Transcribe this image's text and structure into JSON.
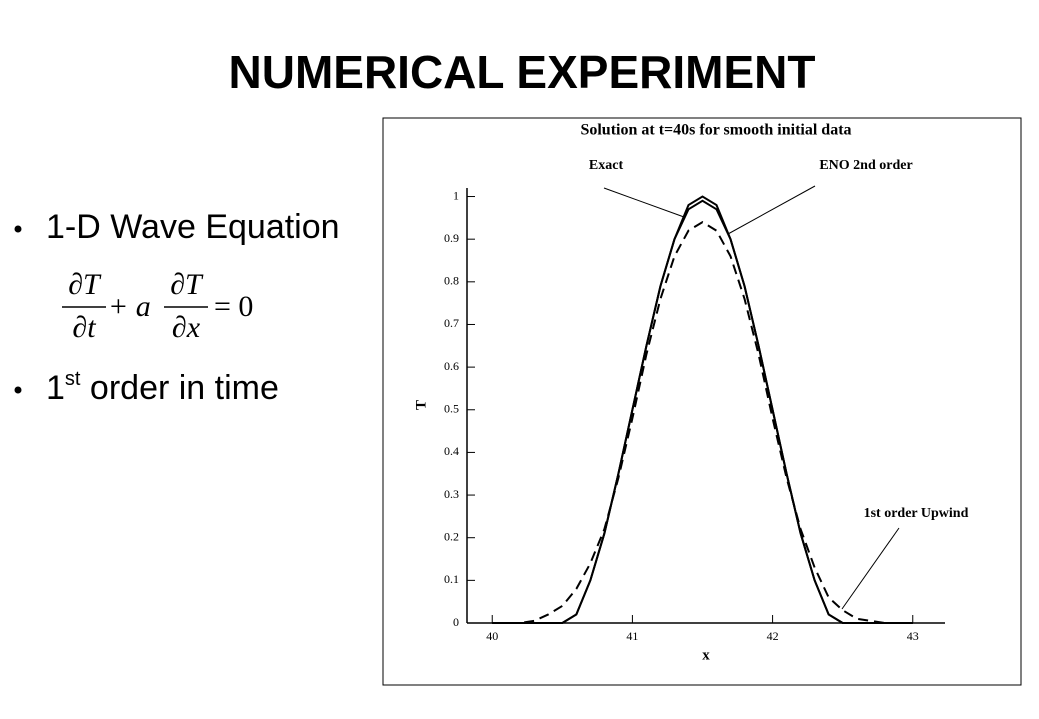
{
  "title": "NUMERICAL EXPERIMENT",
  "bullets": [
    {
      "text": "1-D Wave Equation"
    },
    {
      "number": "1",
      "superscript": "st",
      "text": " order in time"
    }
  ],
  "equation": {
    "numerator1": "∂T",
    "denominator1": "∂t",
    "operator": "+ a",
    "numerator2": "∂T",
    "denominator2": "∂x",
    "rhs": "= 0"
  },
  "chart_data": {
    "type": "line",
    "title": "Solution at t=40s for smooth initial data",
    "x_label": "x",
    "y_label": "T",
    "x": [
      40,
      40.1,
      40.2,
      40.3,
      40.4,
      40.5,
      40.6,
      40.7,
      40.8,
      40.9,
      41,
      41.1,
      41.2,
      41.3,
      41.4,
      41.5,
      41.6,
      41.7,
      41.8,
      41.9,
      42,
      42.1,
      42.2,
      42.3,
      42.4,
      42.5,
      42.6,
      42.7,
      42.8,
      42.9,
      43
    ],
    "series": [
      {
        "name": "Exact",
        "color": "#000000",
        "dashed": false,
        "values": [
          0,
          0,
          0,
          0,
          0,
          0,
          0.02,
          0.1,
          0.21,
          0.35,
          0.5,
          0.65,
          0.79,
          0.9,
          0.98,
          1,
          0.98,
          0.9,
          0.79,
          0.65,
          0.5,
          0.35,
          0.21,
          0.1,
          0.02,
          0,
          0,
          0,
          0,
          0,
          0
        ]
      },
      {
        "name": "ENO 2nd order",
        "color": "#000000",
        "dashed": false,
        "values": [
          0,
          0,
          0,
          0,
          0,
          0,
          0.02,
          0.1,
          0.21,
          0.35,
          0.5,
          0.65,
          0.79,
          0.9,
          0.97,
          0.99,
          0.97,
          0.9,
          0.79,
          0.65,
          0.5,
          0.35,
          0.21,
          0.1,
          0.02,
          0,
          0,
          0,
          0,
          0,
          0
        ]
      },
      {
        "name": "1st order Upwind",
        "color": "#000000",
        "dashed": true,
        "values": [
          0,
          0,
          0,
          0.005,
          0.02,
          0.04,
          0.08,
          0.14,
          0.22,
          0.34,
          0.48,
          0.63,
          0.76,
          0.86,
          0.92,
          0.94,
          0.92,
          0.86,
          0.76,
          0.63,
          0.48,
          0.34,
          0.22,
          0.13,
          0.06,
          0.03,
          0.01,
          0.005,
          0,
          0,
          0
        ]
      }
    ],
    "xlim": [
      39.82,
      43.23
    ],
    "xticks": [
      40,
      41,
      42,
      43
    ],
    "ylim": [
      0,
      1.02
    ],
    "yticks": [
      0,
      0.1,
      0.2,
      0.3,
      0.4,
      0.5,
      0.6,
      0.7,
      0.8,
      0.9,
      1
    ],
    "grid": false
  }
}
